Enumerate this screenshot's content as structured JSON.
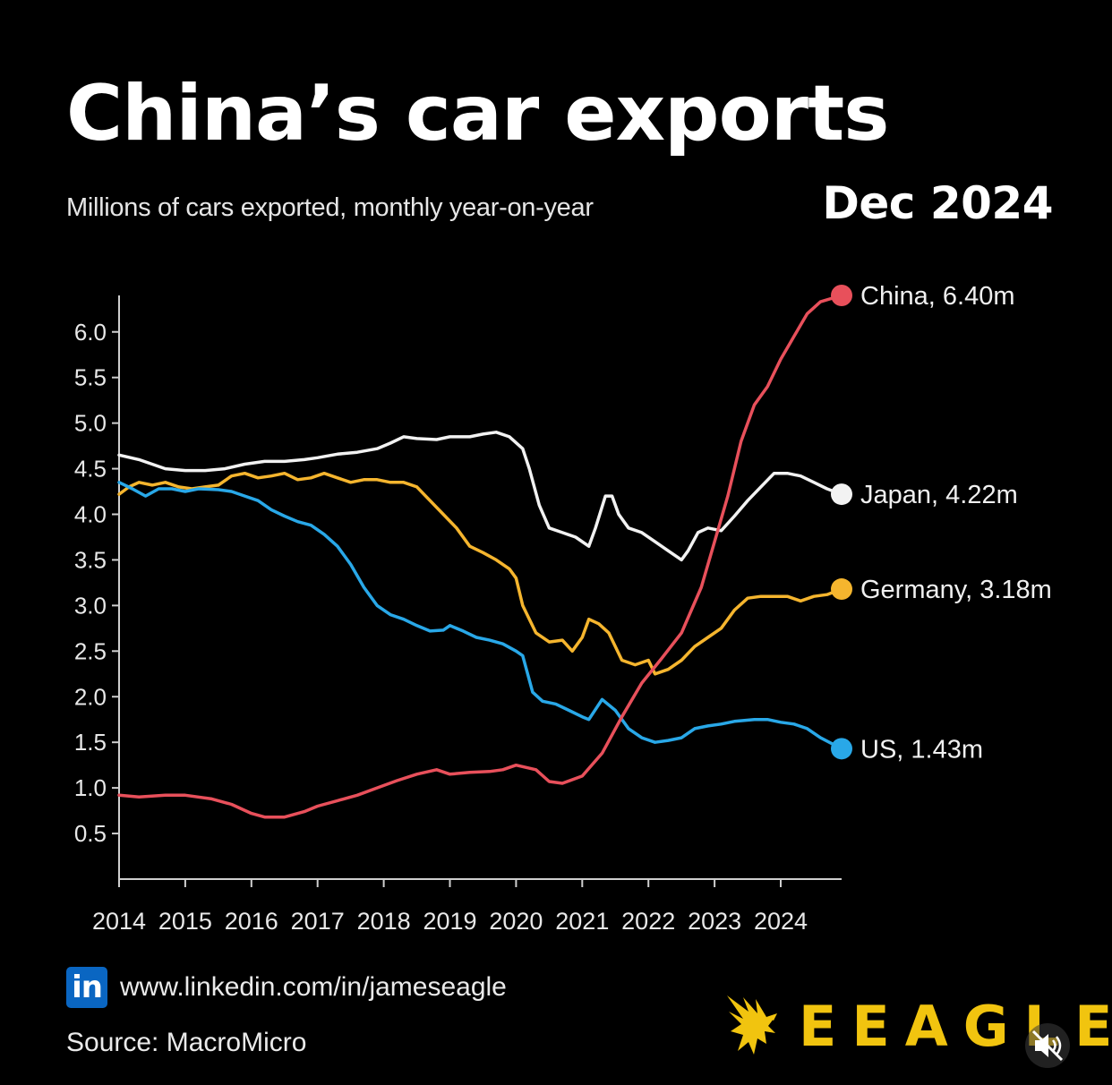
{
  "header": {
    "title": "China’s car exports",
    "subtitle": "Millions of cars exported, monthly year-on-year",
    "date": "Dec 2024"
  },
  "footer": {
    "linkedin_icon_text": "in",
    "link": "www.linkedin.com/in/jameseagle",
    "source": "Source: MacroMicro",
    "brand": "EEAGLE"
  },
  "colors": {
    "background": "#000000",
    "china": "#e8505b",
    "japan": "#f2f2f2",
    "germany": "#f5b52e",
    "us": "#29a8e8",
    "brand": "#f1c40f",
    "linkedin": "#0a66c2"
  },
  "chart_data": {
    "type": "line",
    "title": "China’s car exports",
    "subtitle": "Millions of cars exported, monthly year-on-year",
    "xlabel": "",
    "ylabel": "",
    "x_ticks": [
      "2014",
      "2015",
      "2016",
      "2017",
      "2018",
      "2019",
      "2020",
      "2021",
      "2022",
      "2023",
      "2024"
    ],
    "y_ticks": [
      "0.5",
      "1.0",
      "1.5",
      "2.0",
      "2.5",
      "3.0",
      "3.5",
      "4.0",
      "4.5",
      "5.0",
      "5.5",
      "6.0"
    ],
    "xlim": [
      2014.0,
      2024.92
    ],
    "ylim": [
      0.0,
      6.4
    ],
    "grid": false,
    "legend": "end-of-line labels",
    "series": [
      {
        "name": "China",
        "color": "#e8505b",
        "end_label": "China, 6.40m",
        "points": [
          [
            2014.0,
            0.92
          ],
          [
            2014.3,
            0.9
          ],
          [
            2014.7,
            0.92
          ],
          [
            2015.0,
            0.92
          ],
          [
            2015.4,
            0.88
          ],
          [
            2015.7,
            0.82
          ],
          [
            2016.0,
            0.72
          ],
          [
            2016.2,
            0.68
          ],
          [
            2016.5,
            0.68
          ],
          [
            2016.8,
            0.74
          ],
          [
            2017.0,
            0.8
          ],
          [
            2017.3,
            0.86
          ],
          [
            2017.6,
            0.92
          ],
          [
            2017.9,
            1.0
          ],
          [
            2018.2,
            1.08
          ],
          [
            2018.5,
            1.15
          ],
          [
            2018.8,
            1.2
          ],
          [
            2019.0,
            1.15
          ],
          [
            2019.3,
            1.17
          ],
          [
            2019.6,
            1.18
          ],
          [
            2019.8,
            1.2
          ],
          [
            2020.0,
            1.25
          ],
          [
            2020.3,
            1.2
          ],
          [
            2020.5,
            1.07
          ],
          [
            2020.7,
            1.05
          ],
          [
            2021.0,
            1.13
          ],
          [
            2021.3,
            1.38
          ],
          [
            2021.6,
            1.78
          ],
          [
            2021.9,
            2.15
          ],
          [
            2022.2,
            2.42
          ],
          [
            2022.5,
            2.7
          ],
          [
            2022.8,
            3.2
          ],
          [
            2023.0,
            3.7
          ],
          [
            2023.2,
            4.2
          ],
          [
            2023.4,
            4.8
          ],
          [
            2023.6,
            5.2
          ],
          [
            2023.8,
            5.4
          ],
          [
            2024.0,
            5.7
          ],
          [
            2024.2,
            5.95
          ],
          [
            2024.4,
            6.2
          ],
          [
            2024.6,
            6.33
          ],
          [
            2024.92,
            6.4
          ]
        ]
      },
      {
        "name": "Japan",
        "color": "#f2f2f2",
        "end_label": "Japan, 4.22m",
        "points": [
          [
            2014.0,
            4.65
          ],
          [
            2014.3,
            4.6
          ],
          [
            2014.7,
            4.5
          ],
          [
            2015.0,
            4.48
          ],
          [
            2015.3,
            4.48
          ],
          [
            2015.6,
            4.5
          ],
          [
            2015.9,
            4.55
          ],
          [
            2016.2,
            4.58
          ],
          [
            2016.5,
            4.58
          ],
          [
            2016.8,
            4.6
          ],
          [
            2017.0,
            4.62
          ],
          [
            2017.3,
            4.66
          ],
          [
            2017.6,
            4.68
          ],
          [
            2017.9,
            4.72
          ],
          [
            2018.1,
            4.78
          ],
          [
            2018.3,
            4.85
          ],
          [
            2018.5,
            4.83
          ],
          [
            2018.8,
            4.82
          ],
          [
            2019.0,
            4.85
          ],
          [
            2019.3,
            4.85
          ],
          [
            2019.5,
            4.88
          ],
          [
            2019.7,
            4.9
          ],
          [
            2019.9,
            4.85
          ],
          [
            2020.1,
            4.72
          ],
          [
            2020.2,
            4.5
          ],
          [
            2020.35,
            4.1
          ],
          [
            2020.5,
            3.85
          ],
          [
            2020.7,
            3.8
          ],
          [
            2020.9,
            3.75
          ],
          [
            2021.1,
            3.65
          ],
          [
            2021.2,
            3.85
          ],
          [
            2021.35,
            4.2
          ],
          [
            2021.45,
            4.2
          ],
          [
            2021.55,
            4.0
          ],
          [
            2021.7,
            3.85
          ],
          [
            2021.9,
            3.8
          ],
          [
            2022.1,
            3.7
          ],
          [
            2022.3,
            3.6
          ],
          [
            2022.5,
            3.5
          ],
          [
            2022.6,
            3.6
          ],
          [
            2022.75,
            3.8
          ],
          [
            2022.9,
            3.85
          ],
          [
            2023.1,
            3.82
          ],
          [
            2023.3,
            3.98
          ],
          [
            2023.5,
            4.15
          ],
          [
            2023.7,
            4.3
          ],
          [
            2023.9,
            4.45
          ],
          [
            2024.1,
            4.45
          ],
          [
            2024.3,
            4.42
          ],
          [
            2024.5,
            4.35
          ],
          [
            2024.7,
            4.28
          ],
          [
            2024.92,
            4.22
          ]
        ]
      },
      {
        "name": "Germany",
        "color": "#f5b52e",
        "end_label": "Germany, 3.18m",
        "points": [
          [
            2014.0,
            4.22
          ],
          [
            2014.15,
            4.3
          ],
          [
            2014.3,
            4.35
          ],
          [
            2014.5,
            4.32
          ],
          [
            2014.7,
            4.35
          ],
          [
            2014.9,
            4.3
          ],
          [
            2015.1,
            4.28
          ],
          [
            2015.3,
            4.3
          ],
          [
            2015.5,
            4.32
          ],
          [
            2015.7,
            4.42
          ],
          [
            2015.9,
            4.45
          ],
          [
            2016.1,
            4.4
          ],
          [
            2016.3,
            4.42
          ],
          [
            2016.5,
            4.45
          ],
          [
            2016.7,
            4.38
          ],
          [
            2016.9,
            4.4
          ],
          [
            2017.1,
            4.45
          ],
          [
            2017.3,
            4.4
          ],
          [
            2017.5,
            4.35
          ],
          [
            2017.7,
            4.38
          ],
          [
            2017.9,
            4.38
          ],
          [
            2018.1,
            4.35
          ],
          [
            2018.3,
            4.35
          ],
          [
            2018.5,
            4.3
          ],
          [
            2018.7,
            4.15
          ],
          [
            2018.9,
            4.0
          ],
          [
            2019.1,
            3.85
          ],
          [
            2019.3,
            3.65
          ],
          [
            2019.5,
            3.58
          ],
          [
            2019.7,
            3.5
          ],
          [
            2019.9,
            3.4
          ],
          [
            2020.0,
            3.3
          ],
          [
            2020.1,
            3.0
          ],
          [
            2020.3,
            2.7
          ],
          [
            2020.5,
            2.6
          ],
          [
            2020.7,
            2.62
          ],
          [
            2020.85,
            2.5
          ],
          [
            2021.0,
            2.65
          ],
          [
            2021.1,
            2.85
          ],
          [
            2021.25,
            2.8
          ],
          [
            2021.4,
            2.7
          ],
          [
            2021.6,
            2.4
          ],
          [
            2021.8,
            2.35
          ],
          [
            2022.0,
            2.4
          ],
          [
            2022.1,
            2.25
          ],
          [
            2022.3,
            2.3
          ],
          [
            2022.5,
            2.4
          ],
          [
            2022.7,
            2.55
          ],
          [
            2022.9,
            2.65
          ],
          [
            2023.1,
            2.75
          ],
          [
            2023.3,
            2.95
          ],
          [
            2023.5,
            3.08
          ],
          [
            2023.7,
            3.1
          ],
          [
            2023.9,
            3.1
          ],
          [
            2024.1,
            3.1
          ],
          [
            2024.3,
            3.05
          ],
          [
            2024.5,
            3.1
          ],
          [
            2024.7,
            3.12
          ],
          [
            2024.92,
            3.18
          ]
        ]
      },
      {
        "name": "US",
        "color": "#29a8e8",
        "end_label": "US, 1.43m",
        "points": [
          [
            2014.0,
            4.35
          ],
          [
            2014.2,
            4.28
          ],
          [
            2014.4,
            4.2
          ],
          [
            2014.6,
            4.28
          ],
          [
            2014.8,
            4.28
          ],
          [
            2015.0,
            4.25
          ],
          [
            2015.2,
            4.28
          ],
          [
            2015.5,
            4.27
          ],
          [
            2015.7,
            4.25
          ],
          [
            2015.9,
            4.2
          ],
          [
            2016.1,
            4.15
          ],
          [
            2016.3,
            4.05
          ],
          [
            2016.5,
            3.98
          ],
          [
            2016.7,
            3.92
          ],
          [
            2016.9,
            3.88
          ],
          [
            2017.1,
            3.78
          ],
          [
            2017.3,
            3.65
          ],
          [
            2017.5,
            3.45
          ],
          [
            2017.7,
            3.2
          ],
          [
            2017.9,
            3.0
          ],
          [
            2018.1,
            2.9
          ],
          [
            2018.3,
            2.85
          ],
          [
            2018.5,
            2.78
          ],
          [
            2018.7,
            2.72
          ],
          [
            2018.9,
            2.73
          ],
          [
            2019.0,
            2.78
          ],
          [
            2019.2,
            2.72
          ],
          [
            2019.4,
            2.65
          ],
          [
            2019.6,
            2.62
          ],
          [
            2019.8,
            2.58
          ],
          [
            2020.0,
            2.5
          ],
          [
            2020.1,
            2.45
          ],
          [
            2020.25,
            2.05
          ],
          [
            2020.4,
            1.95
          ],
          [
            2020.6,
            1.92
          ],
          [
            2020.8,
            1.85
          ],
          [
            2021.0,
            1.78
          ],
          [
            2021.1,
            1.75
          ],
          [
            2021.3,
            1.97
          ],
          [
            2021.5,
            1.85
          ],
          [
            2021.7,
            1.65
          ],
          [
            2021.9,
            1.55
          ],
          [
            2022.1,
            1.5
          ],
          [
            2022.3,
            1.52
          ],
          [
            2022.5,
            1.55
          ],
          [
            2022.7,
            1.65
          ],
          [
            2022.9,
            1.68
          ],
          [
            2023.1,
            1.7
          ],
          [
            2023.3,
            1.73
          ],
          [
            2023.6,
            1.75
          ],
          [
            2023.8,
            1.75
          ],
          [
            2024.0,
            1.72
          ],
          [
            2024.2,
            1.7
          ],
          [
            2024.4,
            1.65
          ],
          [
            2024.6,
            1.55
          ],
          [
            2024.92,
            1.43
          ]
        ]
      }
    ]
  }
}
